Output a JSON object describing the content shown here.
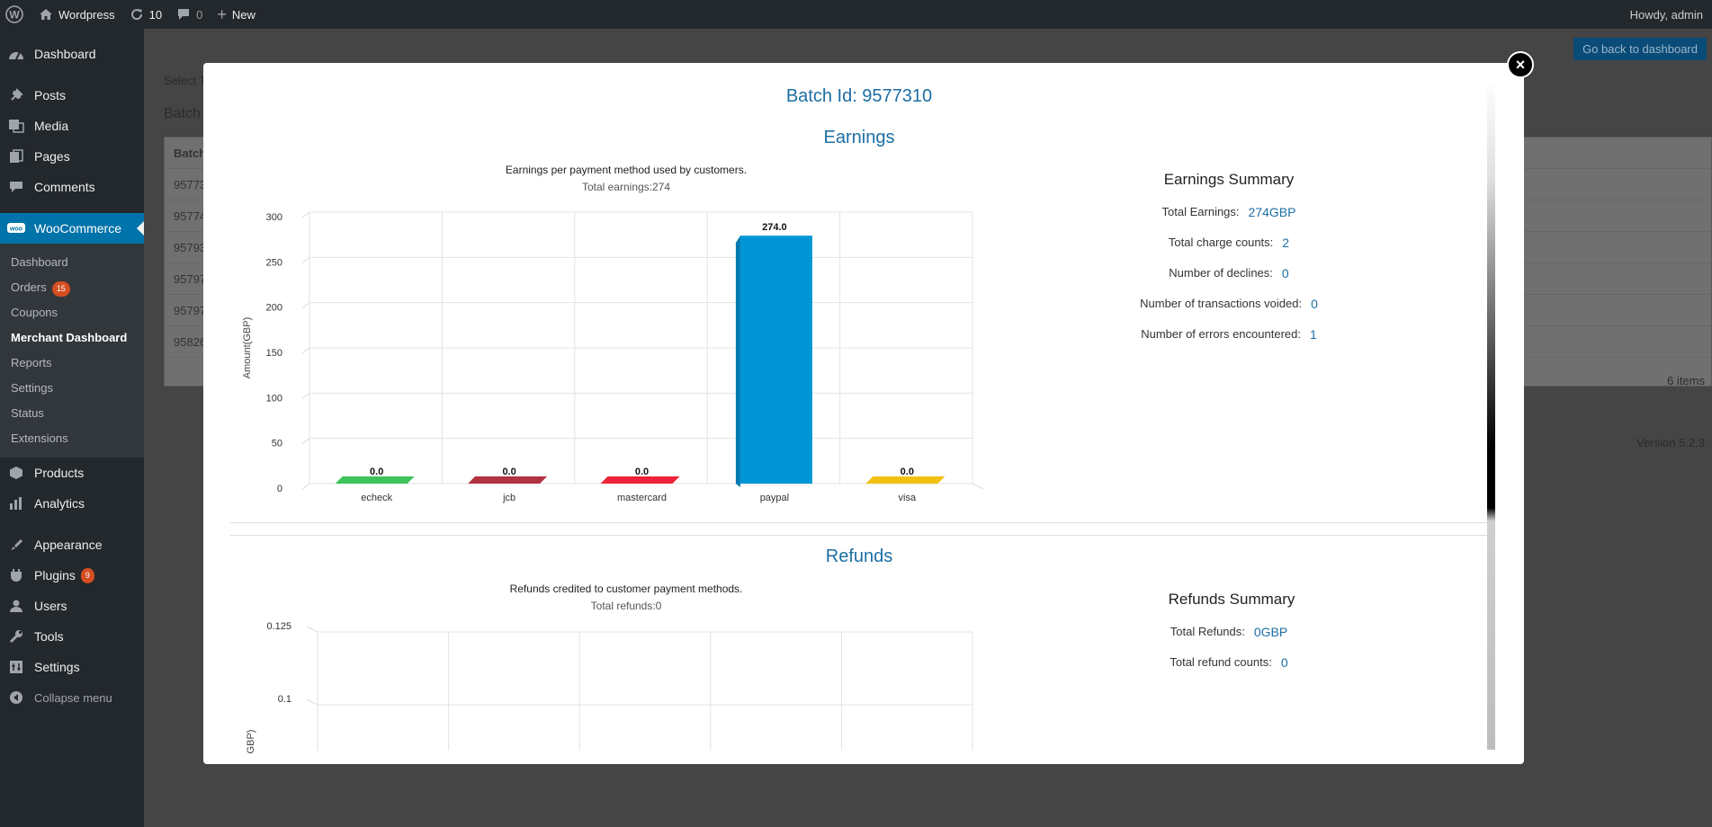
{
  "adminbar": {
    "site_name": "Wordpress",
    "updates_count": "10",
    "comments_count": "0",
    "new_label": "New",
    "howdy": "Howdy, admin"
  },
  "sidebar": {
    "items": [
      {
        "label": "Dashboard",
        "icon": "dashboard-icon"
      },
      {
        "label": "Posts",
        "icon": "pin-icon"
      },
      {
        "label": "Media",
        "icon": "media-icon"
      },
      {
        "label": "Pages",
        "icon": "pages-icon"
      },
      {
        "label": "Comments",
        "icon": "comments-icon"
      },
      {
        "label": "WooCommerce",
        "icon": "woocommerce-icon"
      },
      {
        "label": "Products",
        "icon": "products-icon"
      },
      {
        "label": "Analytics",
        "icon": "analytics-icon"
      },
      {
        "label": "Appearance",
        "icon": "appearance-icon"
      },
      {
        "label": "Plugins",
        "icon": "plugins-icon",
        "badge": "9"
      },
      {
        "label": "Users",
        "icon": "users-icon"
      },
      {
        "label": "Tools",
        "icon": "tools-icon"
      },
      {
        "label": "Settings",
        "icon": "settings-icon"
      }
    ],
    "woo_sub": [
      {
        "label": "Dashboard"
      },
      {
        "label": "Orders",
        "badge": "15"
      },
      {
        "label": "Coupons"
      },
      {
        "label": "Merchant Dashboard"
      },
      {
        "label": "Reports"
      },
      {
        "label": "Settings"
      },
      {
        "label": "Status"
      },
      {
        "label": "Extensions"
      }
    ],
    "collapse_label": "Collapse menu"
  },
  "page": {
    "back_button": "Go back to dashboard",
    "select_text": "Select T",
    "batch_text": "Batch",
    "table_header": "Batch",
    "rows": [
      "95773",
      "95774",
      "95793",
      "95797",
      "95797",
      "95826"
    ],
    "items_count": "6 items",
    "version": "Version 5.2.3"
  },
  "modal": {
    "close_label": "×",
    "batch_title": "Batch Id: 9577310",
    "earnings_heading": "Earnings",
    "earnings_caption": "Earnings per payment method used by customers.",
    "earnings_sub": "Total earnings:274",
    "earnings_summary": {
      "title": "Earnings Summary",
      "rows": [
        {
          "label": "Total Earnings:",
          "value": "274GBP"
        },
        {
          "label": "Total charge counts:",
          "value": "2"
        },
        {
          "label": "Number of declines:",
          "value": "0"
        },
        {
          "label": "Number of transactions voided:",
          "value": "0"
        },
        {
          "label": "Number of errors encountered:",
          "value": "1"
        }
      ]
    },
    "refunds_heading": "Refunds",
    "refunds_caption": "Refunds credited to customer payment methods.",
    "refunds_sub": "Total refunds:0",
    "refunds_summary": {
      "title": "Refunds Summary",
      "rows": [
        {
          "label": "Total Refunds:",
          "value": "0GBP"
        },
        {
          "label": "Total refund counts:",
          "value": "0"
        }
      ]
    }
  },
  "chart_data": [
    {
      "type": "bar",
      "ylabel": "Amount(GBP)",
      "categories": [
        "echeck",
        "jcb",
        "mastercard",
        "paypal",
        "visa"
      ],
      "values": [
        0.0,
        0.0,
        0.0,
        274.0,
        0.0
      ],
      "data_labels": [
        "0.0",
        "0.0",
        "0.0",
        "274.0",
        "0.0"
      ],
      "colors": [
        "#3cc45a",
        "#b33240",
        "#ee2238",
        "#0096d6",
        "#f2c012"
      ],
      "yticks": [
        "0",
        "50",
        "100",
        "150",
        "200",
        "250",
        "300"
      ],
      "ylim": [
        0,
        300
      ],
      "grid": true
    },
    {
      "type": "bar",
      "ylabel": "GBP)",
      "yticks": [
        "0.075",
        "0.1",
        "0.125"
      ],
      "ylim": [
        0.075,
        0.125
      ],
      "grid": true
    }
  ]
}
